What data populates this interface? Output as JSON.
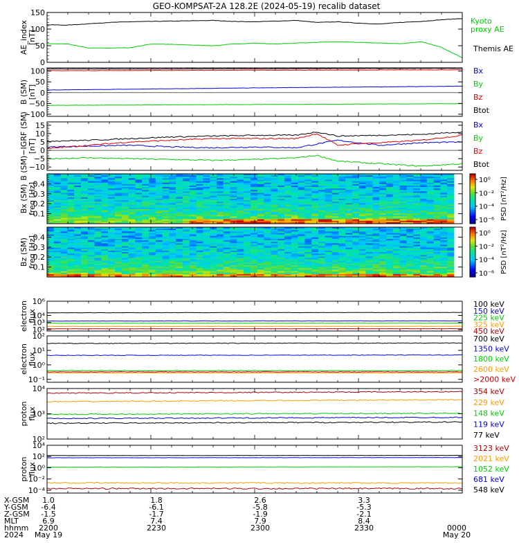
{
  "chart_data": {
    "type": "stacked-time-series",
    "title": "GEO-KOMPSAT-2A 128.2E (2024-05-19) recalib dataset",
    "time_ticks": [
      "2200",
      "2230",
      "2300",
      "2330",
      "0000"
    ],
    "ephemeris": {
      "labels": [
        "X-GSM",
        "Y-GSM",
        "Z-GSM",
        "MLT",
        "hhmm",
        "2024"
      ],
      "columns": [
        {
          "x_gsm": "1.0",
          "y_gsm": "-6.4",
          "z_gsm": "-1.5",
          "mlt": "6.9",
          "hhmm": "2200",
          "date": "May 19"
        },
        {
          "x_gsm": "1.8",
          "y_gsm": "-6.1",
          "z_gsm": "-1.7",
          "mlt": "7.4",
          "hhmm": "2230",
          "date": ""
        },
        {
          "x_gsm": "2.6",
          "y_gsm": "-5.8",
          "z_gsm": "-1.9",
          "mlt": "7.9",
          "hhmm": "2300",
          "date": ""
        },
        {
          "x_gsm": "3.3",
          "y_gsm": "-5.3",
          "z_gsm": "-2.1",
          "mlt": "8.4",
          "hhmm": "2330",
          "date": ""
        },
        {
          "x_gsm": "",
          "y_gsm": "",
          "z_gsm": "",
          "mlt": "",
          "hhmm": "0000",
          "date": "May 20"
        }
      ]
    },
    "panels": [
      {
        "id": "ae",
        "kind": "line",
        "scale": "linear",
        "ylabel_lines": [
          "AE_index",
          "[nT]"
        ],
        "ylim": [
          0,
          150
        ],
        "yticks": [
          {
            "v": 0,
            "label": "0"
          },
          {
            "v": 50,
            "label": "50"
          },
          {
            "v": 100,
            "label": "100"
          },
          {
            "v": 150,
            "label": "150"
          }
        ],
        "series": [
          {
            "name": "Kyoto proxy AE",
            "label_lines": [
              "Kyoto",
              "proxy AE"
            ],
            "color": "#00cc00",
            "t": [
              0,
              0.05,
              0.1,
              0.15,
              0.2,
              0.25,
              0.3,
              0.35,
              0.4,
              0.45,
              0.5,
              0.55,
              0.6,
              0.65,
              0.7,
              0.75,
              0.8,
              0.85,
              0.9,
              0.95,
              1
            ],
            "v": [
              56,
              55,
              43,
              43,
              44,
              55,
              54,
              52,
              50,
              55,
              58,
              55,
              58,
              60,
              62,
              60,
              58,
              56,
              62,
              45,
              14
            ]
          },
          {
            "name": "Themis AE",
            "label_lines": [
              "Themis AE"
            ],
            "color": "#000000",
            "t": [
              0,
              0.05,
              0.1,
              0.15,
              0.2,
              0.25,
              0.3,
              0.35,
              0.4,
              0.45,
              0.5,
              0.55,
              0.6,
              0.65,
              0.7,
              0.75,
              0.8,
              0.85,
              0.9,
              0.95,
              1
            ],
            "v": [
              113,
              112,
              116,
              120,
              122,
              123,
              124,
              125,
              126,
              123,
              122,
              124,
              126,
              120,
              122,
              118,
              115,
              120,
              123,
              128,
              132
            ]
          }
        ]
      },
      {
        "id": "b_sm",
        "kind": "line",
        "scale": "linear",
        "ylabel_lines": [
          "B (SM)",
          "[nT]"
        ],
        "ylim": [
          -110,
          115
        ],
        "yticks": [
          {
            "v": -100,
            "label": "−100"
          },
          {
            "v": -50,
            "label": "−50"
          },
          {
            "v": 0,
            "label": "0"
          },
          {
            "v": 50,
            "label": "50"
          },
          {
            "v": 100,
            "label": "100"
          }
        ],
        "series": [
          {
            "name": "Bx",
            "color": "#0000dd",
            "t": [
              0,
              0.25,
              0.5,
              0.75,
              1
            ],
            "v": [
              12,
              17,
              22,
              26,
              30
            ]
          },
          {
            "name": "By",
            "color": "#00cc00",
            "t": [
              0,
              0.25,
              0.5,
              0.75,
              1
            ],
            "v": [
              -59,
              -57,
              -55,
              -53,
              -51
            ]
          },
          {
            "name": "Bz",
            "color": "#dd0000",
            "t": [
              0,
              0.25,
              0.5,
              0.75,
              1
            ],
            "v": [
              102,
              103,
              104,
              105,
              106
            ]
          },
          {
            "name": "Btot",
            "color": "#000000",
            "t": [
              0,
              0.25,
              0.5,
              0.75,
              1
            ],
            "v": [
              110,
              110,
              111,
              112,
              113
            ]
          }
        ]
      },
      {
        "id": "b_igrf",
        "kind": "line",
        "scale": "linear",
        "ylabel_lines": [
          "B (SM)−IGRF (SM)",
          "[nT]"
        ],
        "ylim": [
          -12,
          17
        ],
        "yticks": [
          {
            "v": -10,
            "label": "−10"
          },
          {
            "v": -5,
            "label": "−5"
          },
          {
            "v": 0,
            "label": "0"
          },
          {
            "v": 5,
            "label": "5"
          },
          {
            "v": 10,
            "label": "10"
          },
          {
            "v": 15,
            "label": "15"
          }
        ],
        "series": [
          {
            "name": "Bx",
            "color": "#0000dd",
            "t": [
              0,
              0.1,
              0.2,
              0.3,
              0.4,
              0.5,
              0.6,
              0.7,
              0.8,
              0.9,
              1
            ],
            "v": [
              2,
              2.5,
              3,
              2,
              1.5,
              2,
              1.5,
              6,
              3,
              4.5,
              5
            ]
          },
          {
            "name": "By",
            "color": "#00cc00",
            "t": [
              0,
              0.1,
              0.2,
              0.3,
              0.4,
              0.5,
              0.6,
              0.65,
              0.7,
              0.8,
              0.9,
              1
            ],
            "v": [
              -5,
              -4.5,
              -5,
              -5.5,
              -6,
              -5.5,
              -4.5,
              -3,
              -6.5,
              -8,
              -9.5,
              -8
            ]
          },
          {
            "name": "Bz",
            "color": "#dd0000",
            "t": [
              0,
              0.1,
              0.2,
              0.3,
              0.4,
              0.5,
              0.6,
              0.65,
              0.7,
              0.75,
              0.8,
              0.9,
              1
            ],
            "v": [
              1,
              3,
              5,
              6,
              7,
              7,
              7,
              10,
              3,
              4,
              4.5,
              6,
              9
            ]
          },
          {
            "name": "Btot",
            "color": "#000000",
            "t": [
              0,
              0.1,
              0.2,
              0.3,
              0.4,
              0.5,
              0.6,
              0.65,
              0.7,
              0.8,
              0.9,
              1
            ],
            "v": [
              5.5,
              6,
              7,
              8,
              8.5,
              9,
              9,
              11,
              8.5,
              9,
              9.5,
              11
            ]
          }
        ]
      },
      {
        "id": "bx_psd",
        "kind": "spectrogram",
        "scale": "linear",
        "ylabel_lines": [
          "Bx (SM)",
          "freq [Hz]"
        ],
        "ylim": [
          0,
          0.5
        ],
        "yticks": [
          {
            "v": 0.1,
            "label": "0.1"
          },
          {
            "v": 0.2,
            "label": "0.2"
          },
          {
            "v": 0.3,
            "label": "0.3"
          },
          {
            "v": 0.4,
            "label": "0.4"
          }
        ],
        "colorbar": {
          "label": "PSD [nT²/Hz]",
          "ticks": [
            "10⁰",
            "10⁻²",
            "10⁻⁴",
            "10⁻⁶"
          ]
        }
      },
      {
        "id": "bz_psd",
        "kind": "spectrogram",
        "scale": "linear",
        "ylabel_lines": [
          "Bz (SM)",
          "freq [Hz]"
        ],
        "ylim": [
          0,
          0.5
        ],
        "yticks": [
          {
            "v": 0.1,
            "label": "0.1"
          },
          {
            "v": 0.2,
            "label": "0.2"
          },
          {
            "v": 0.3,
            "label": "0.3"
          },
          {
            "v": 0.4,
            "label": "0.4"
          }
        ],
        "colorbar": {
          "label": "PSD [nT²/Hz]",
          "ticks": [
            "10⁰",
            "10⁻²",
            "10⁻⁴",
            "10⁻⁶"
          ]
        }
      },
      {
        "id": "e_low",
        "kind": "line",
        "scale": "log",
        "ylabel_lines": [
          "electron",
          "flux"
        ],
        "ylim_exp": [
          1.8,
          6
        ],
        "yticks": [
          {
            "e": 2,
            "label": "10²"
          },
          {
            "e": 3,
            "label": "10³"
          },
          {
            "e": 4,
            "label": "10⁴"
          },
          {
            "e": 6,
            "label": "10⁶"
          }
        ],
        "series": [
          {
            "name": "100 keV",
            "color": "#000000",
            "t": [
              0,
              1
            ],
            "v": [
              24000,
              26000
            ]
          },
          {
            "name": "150 keV",
            "color": "#0000dd",
            "t": [
              0,
              1
            ],
            "v": [
              1600,
              1700
            ]
          },
          {
            "name": "225 keV",
            "color": "#00cc00",
            "t": [
              0,
              1
            ],
            "v": [
              800,
              850
            ]
          },
          {
            "name": "325 keV",
            "color": "#ff9900",
            "t": [
              0,
              1
            ],
            "v": [
              280,
              290
            ]
          },
          {
            "name": "450 keV",
            "color": "#aa0000",
            "t": [
              0,
              1
            ],
            "v": [
              130,
              135
            ]
          }
        ]
      },
      {
        "id": "e_high",
        "kind": "line",
        "scale": "log",
        "ylabel_lines": [
          "electron",
          "flux"
        ],
        "ylim_exp": [
          -1.2,
          2
        ],
        "yticks": [
          {
            "e": -1,
            "label": "10⁻¹"
          },
          {
            "e": 0,
            "label": "10⁰"
          },
          {
            "e": 1,
            "label": "10¹"
          },
          {
            "e": 2,
            "label": "10²"
          }
        ],
        "series": [
          {
            "name": "700 keV",
            "color": "#000000",
            "t": [
              0,
              1
            ],
            "v": [
              30,
              32
            ]
          },
          {
            "name": "1350 keV",
            "color": "#0000dd",
            "t": [
              0,
              1
            ],
            "v": [
              4.5,
              4.8
            ]
          },
          {
            "name": "1800 keV",
            "color": "#00cc00",
            "t": [
              0,
              1
            ],
            "v": [
              0.4,
              0.4
            ]
          },
          {
            "name": "2600 keV",
            "color": "#ff9900",
            "t": [
              0,
              1
            ],
            "v": [
              0.28,
              0.28
            ]
          },
          {
            "name": ">2000 keV",
            "color": "#cc0000",
            "t": [
              0,
              1
            ],
            "v": [
              0.33,
              0.33
            ]
          }
        ]
      },
      {
        "id": "p_low",
        "kind": "line",
        "scale": "log",
        "ylabel_lines": [
          "proton",
          "flux"
        ],
        "ylim_exp": [
          2,
          4
        ],
        "yticks": [
          {
            "e": 2,
            "label": "10²"
          },
          {
            "e": 3,
            "label": "10³"
          },
          {
            "e": 4,
            "label": "10⁴"
          }
        ],
        "series": [
          {
            "name": "354 keV",
            "color": "#aa0000",
            "t": [
              0,
              1
            ],
            "v": [
              6500,
              7500
            ]
          },
          {
            "name": "229 keV",
            "color": "#ff9900",
            "t": [
              0,
              1
            ],
            "v": [
              3000,
              3600
            ]
          },
          {
            "name": "148 keV",
            "color": "#00cc00",
            "t": [
              0,
              1
            ],
            "v": [
              950,
              1050
            ]
          },
          {
            "name": "119 keV",
            "color": "#0000dd",
            "t": [
              0,
              1
            ],
            "v": [
              650,
              720
            ]
          },
          {
            "name": "77 keV",
            "color": "#000000",
            "t": [
              0,
              1
            ],
            "v": [
              420,
              470
            ]
          }
        ]
      },
      {
        "id": "p_high",
        "kind": "line",
        "scale": "log",
        "ylabel_lines": [
          "proton",
          "flux"
        ],
        "ylim_exp": [
          -4.5,
          4
        ],
        "yticks": [
          {
            "e": -4,
            "label": "10⁻⁴"
          },
          {
            "e": -2,
            "label": "10⁻²"
          },
          {
            "e": 0,
            "label": "10⁰"
          },
          {
            "e": 2,
            "label": "10²"
          },
          {
            "e": 4,
            "label": "10⁴"
          }
        ],
        "series": [
          {
            "name": "3123 keV",
            "color": "#aa0000",
            "t": [
              0,
              1
            ],
            "v": [
              0.0002,
              0.0002
            ]
          },
          {
            "name": "2021 keV",
            "color": "#ff9900",
            "t": [
              0,
              1
            ],
            "v": [
              0.002,
              0.002
            ]
          },
          {
            "name": "1052 keV",
            "color": "#00cc00",
            "t": [
              0,
              1
            ],
            "v": [
              1.3,
              1.5
            ]
          },
          {
            "name": "681 keV",
            "color": "#0000dd",
            "t": [
              0,
              1
            ],
            "v": [
              60,
              65
            ]
          },
          {
            "name": "548 keV",
            "color": "#000000",
            "t": [
              0,
              1
            ],
            "v": [
              150,
              160
            ]
          }
        ]
      }
    ]
  }
}
